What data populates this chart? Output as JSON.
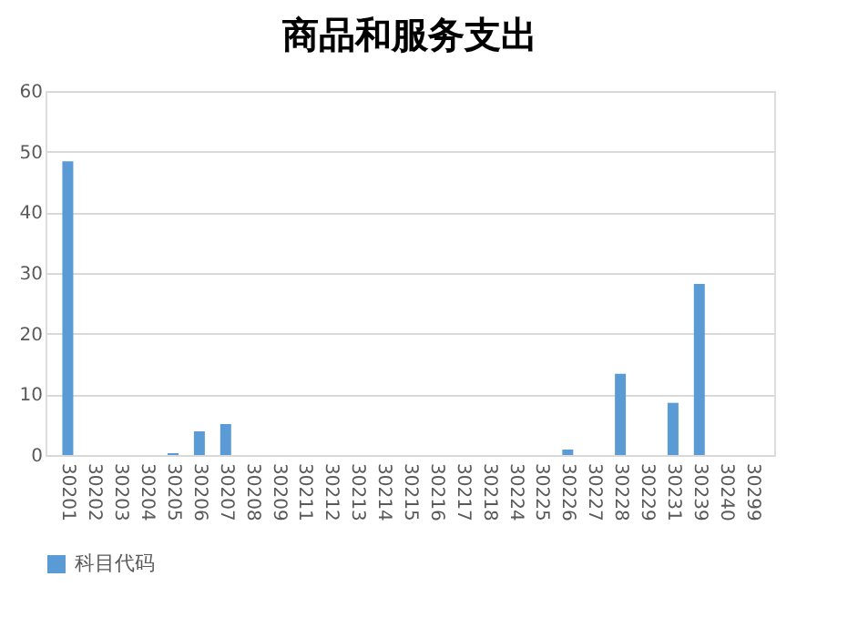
{
  "chart_data": {
    "type": "bar",
    "title": "商品和服务支出",
    "categories": [
      "30201",
      "30202",
      "30203",
      "30204",
      "30205",
      "30206",
      "30207",
      "30208",
      "30209",
      "30211",
      "30212",
      "30213",
      "30214",
      "30215",
      "30216",
      "30217",
      "30218",
      "30224",
      "30225",
      "30226",
      "30227",
      "30228",
      "30229",
      "30231",
      "30239",
      "30240",
      "30299"
    ],
    "series": [
      {
        "name": "科目代码",
        "color": "#5b9bd5",
        "values": [
          48.4,
          0,
          0,
          0,
          0.3,
          3.9,
          5.1,
          0,
          0,
          0,
          0,
          0,
          0,
          0,
          0,
          0,
          0,
          0,
          0,
          0.9,
          0,
          13.4,
          0,
          8.6,
          28.2,
          0,
          0
        ]
      }
    ],
    "ylim": [
      0,
      60
    ],
    "yticks": [
      0,
      10,
      20,
      30,
      40,
      50,
      60
    ],
    "grid": "y",
    "legend": "bottom"
  }
}
